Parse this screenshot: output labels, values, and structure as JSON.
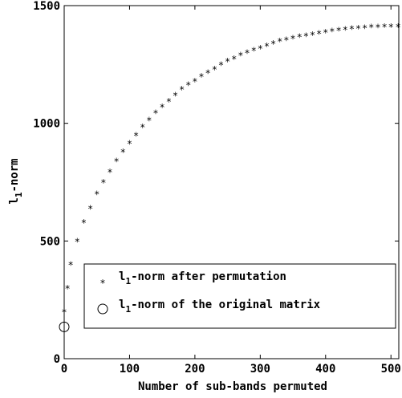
{
  "chart_data": {
    "type": "scatter",
    "xlabel": "Number of sub-bands permuted",
    "ylabel": "l1-norm",
    "ylabel_parts": {
      "base": "l",
      "sub": "1",
      "rest": "-norm"
    },
    "xlim": [
      0,
      512
    ],
    "ylim": [
      0,
      1500
    ],
    "xticks": [
      "0",
      "100",
      "200",
      "300",
      "400",
      "500"
    ],
    "yticks": [
      "0",
      "500",
      "1000",
      "1500"
    ],
    "grid": false,
    "legend_position": "lower-right",
    "series": [
      {
        "name": "l1-norm after permutation",
        "name_parts": {
          "base": "l",
          "sub": "1",
          "rest": "-norm after permutation"
        },
        "marker": "star",
        "color": "#000000",
        "x": [
          0,
          5,
          10,
          20,
          30,
          40,
          50,
          60,
          70,
          80,
          90,
          100,
          110,
          120,
          130,
          140,
          150,
          160,
          170,
          180,
          190,
          200,
          210,
          220,
          230,
          240,
          250,
          260,
          270,
          280,
          290,
          300,
          310,
          320,
          330,
          340,
          350,
          360,
          370,
          380,
          390,
          400,
          410,
          420,
          430,
          440,
          450,
          460,
          470,
          480,
          490,
          500,
          511
        ],
        "y": [
          200,
          300,
          400,
          500,
          580,
          640,
          700,
          750,
          795,
          840,
          880,
          915,
          950,
          985,
          1015,
          1045,
          1070,
          1095,
          1120,
          1145,
          1165,
          1180,
          1200,
          1215,
          1230,
          1250,
          1265,
          1275,
          1290,
          1300,
          1310,
          1320,
          1330,
          1340,
          1350,
          1355,
          1362,
          1368,
          1373,
          1378,
          1383,
          1388,
          1392,
          1396,
          1399,
          1402,
          1405,
          1407,
          1409,
          1410,
          1411,
          1412,
          1412
        ]
      },
      {
        "name": "l1-norm of the original matrix",
        "name_parts": {
          "base": "l",
          "sub": "1",
          "rest": "-norm of the original matrix"
        },
        "marker": "circle",
        "color": "#000000",
        "x": [
          0
        ],
        "y": [
          135
        ]
      }
    ]
  }
}
